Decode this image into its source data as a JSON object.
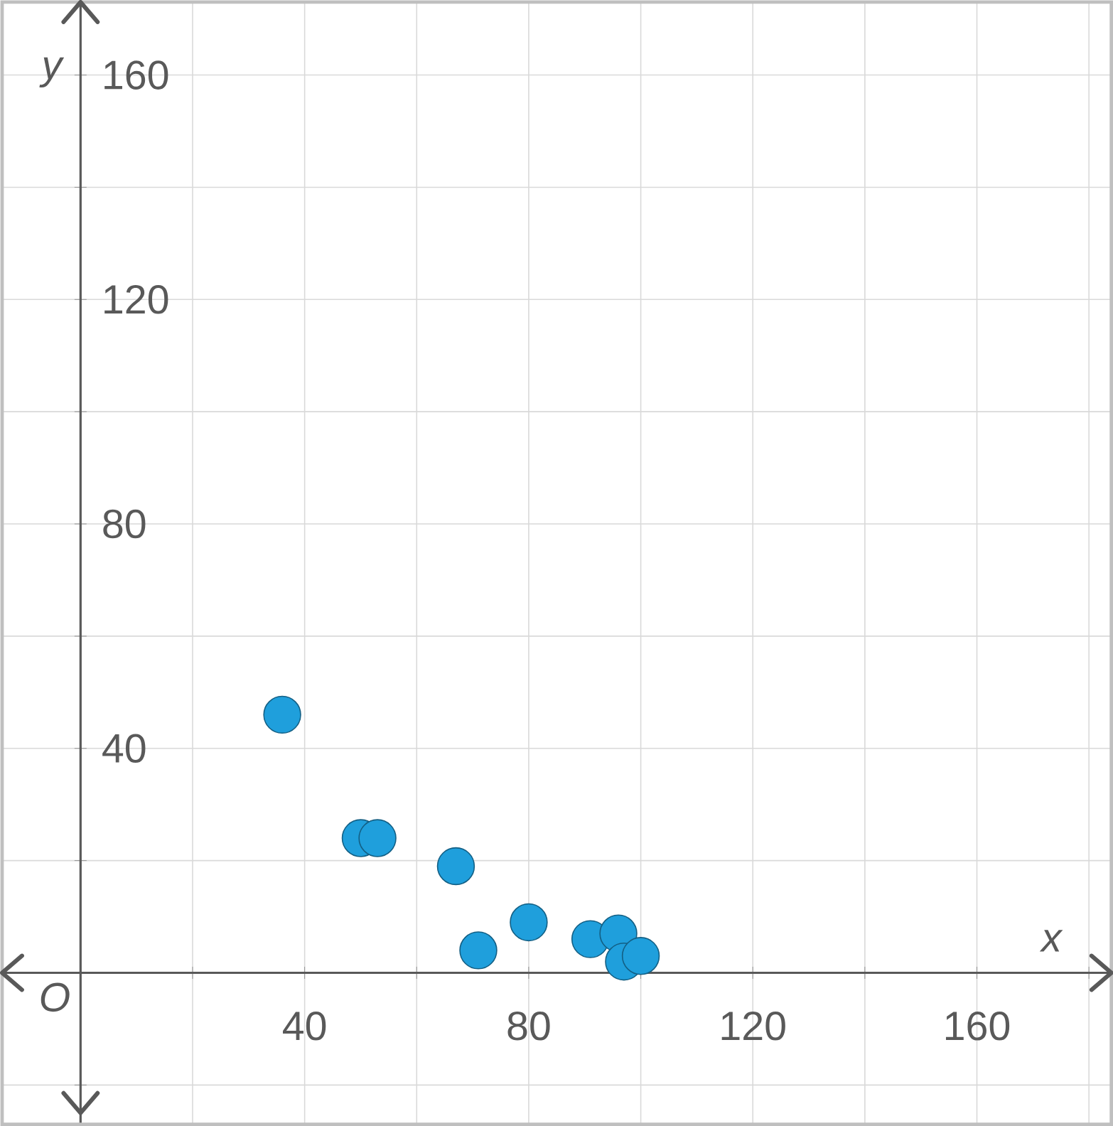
{
  "chart_data": {
    "type": "scatter",
    "xlabel": "x",
    "ylabel": "y",
    "annotations": [
      "O"
    ],
    "x": [
      36,
      50,
      53,
      67,
      71,
      80,
      91,
      96,
      97,
      100
    ],
    "values": [
      46,
      24,
      24,
      19,
      4,
      9,
      6,
      7,
      2,
      3
    ],
    "color": "#1f9fdc",
    "marker": "circle",
    "grid": true,
    "xlim": [
      -14,
      184
    ],
    "ylim": [
      -27,
      173
    ],
    "xticks": [
      {
        "value": 20,
        "label": null
      },
      40,
      {
        "value": 60,
        "label": null
      },
      80,
      {
        "value": 100,
        "label": null
      },
      120,
      {
        "value": 140,
        "label": null
      },
      160,
      {
        "value": 180,
        "label": null
      }
    ],
    "yticks": [
      {
        "value": -20,
        "label": null
      },
      {
        "value": 20,
        "label": null
      },
      40,
      {
        "value": 60,
        "label": null
      },
      80,
      {
        "value": 100,
        "label": null
      },
      120,
      {
        "value": 140,
        "label": null
      },
      160
    ]
  }
}
